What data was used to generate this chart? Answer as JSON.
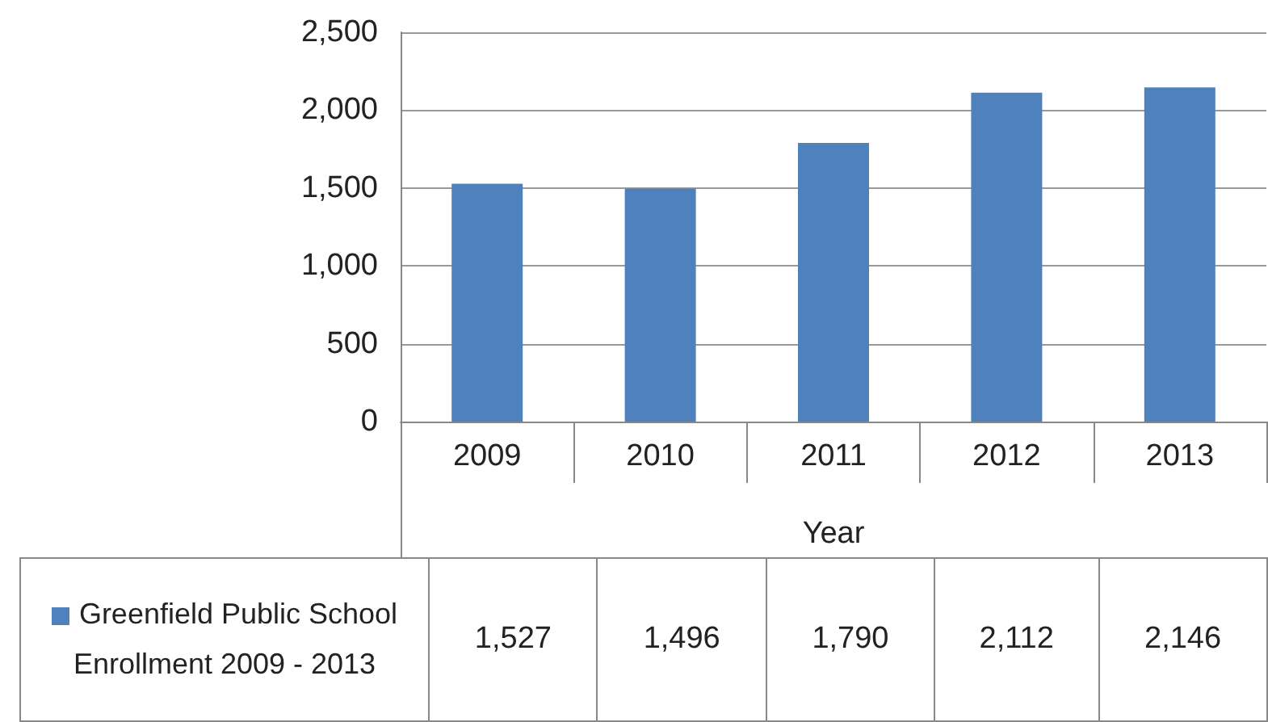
{
  "chart_data": {
    "type": "bar",
    "xlabel": "Year",
    "categories": [
      "2009",
      "2010",
      "2011",
      "2012",
      "2013"
    ],
    "series": [
      {
        "name": "Greenfield Public School Enrollment 2009 - 2013",
        "color": "#4f81bd",
        "values": [
          1527,
          1496,
          1790,
          2112,
          2146
        ],
        "value_labels": [
          "1,527",
          "1,496",
          "1,790",
          "2,112",
          "2,146"
        ]
      }
    ],
    "ylim": [
      0,
      2500
    ],
    "yticks": [
      0,
      500,
      {
        "value": 1000,
        "label": "1,000"
      },
      {
        "value": 1500,
        "label": "1,500"
      },
      {
        "value": 2000,
        "label": "2,000"
      },
      {
        "value": 2500,
        "label": "2,500"
      }
    ],
    "grid": "y",
    "legend": "bottom left"
  }
}
